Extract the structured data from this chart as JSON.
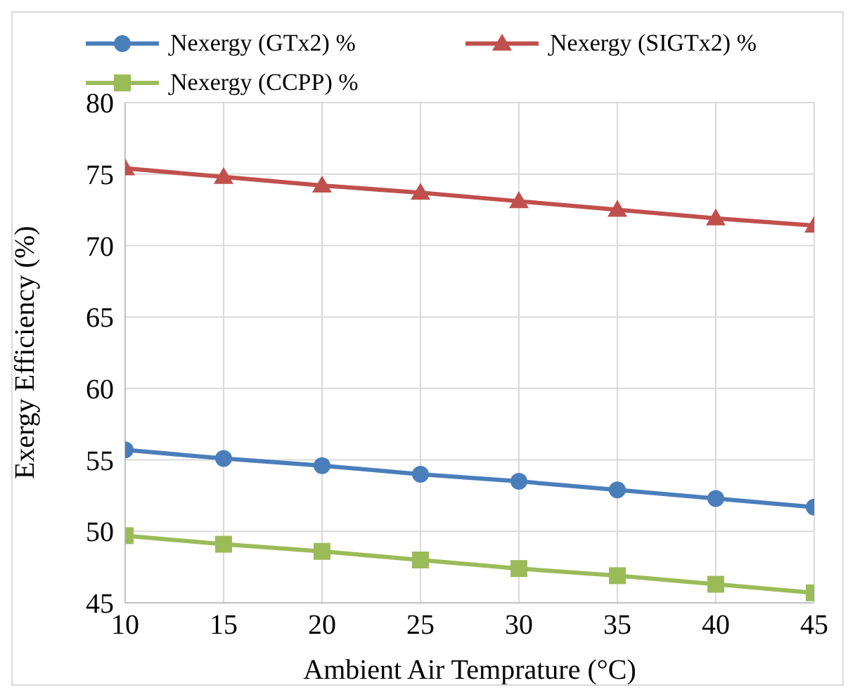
{
  "chart_data": {
    "type": "line",
    "xlabel": "Ambient Air Temprature (°C)",
    "ylabel": "Exergy Efficiency (%)",
    "x": [
      10,
      15,
      20,
      25,
      30,
      35,
      40,
      45
    ],
    "series": [
      {
        "name": "Ɲexergy (GTx2) %",
        "color": "#4a7ebb",
        "marker": "circle",
        "values": [
          55.7,
          55.1,
          54.6,
          54.0,
          53.5,
          52.9,
          52.3,
          51.7
        ]
      },
      {
        "name": "Ɲexergy (SIGTx2) %",
        "color": "#c0504d",
        "marker": "triangle",
        "values": [
          75.4,
          74.8,
          74.2,
          73.7,
          73.1,
          72.5,
          71.9,
          71.4
        ]
      },
      {
        "name": "Ɲexergy (CCPP) %",
        "color": "#9bbb59",
        "marker": "square",
        "values": [
          49.7,
          49.1,
          48.6,
          48.0,
          47.4,
          46.9,
          46.3,
          45.7
        ]
      }
    ],
    "xlim": [
      10,
      45
    ],
    "xticks": [
      10,
      15,
      20,
      25,
      30,
      35,
      40,
      45
    ],
    "ylim": [
      45,
      80
    ],
    "yticks": [
      45,
      50,
      55,
      60,
      65,
      70,
      75,
      80
    ],
    "grid": true,
    "legend": "top"
  }
}
